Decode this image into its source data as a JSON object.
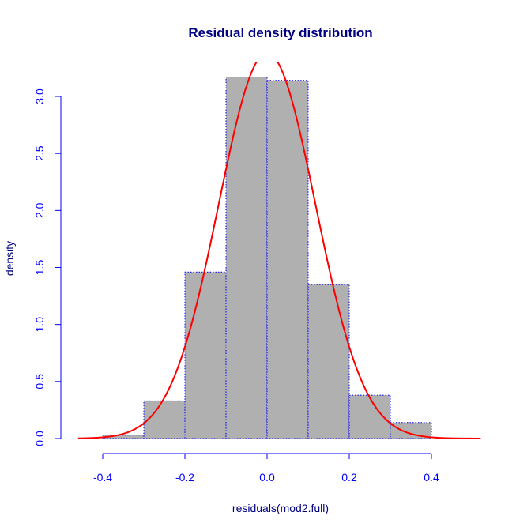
{
  "chart_data": {
    "type": "bar",
    "title": "Residual density distribution",
    "xlabel": "residuals(mod2.full)",
    "ylabel": "density",
    "xlim": [
      -0.46,
      0.52
    ],
    "ylim": [
      0,
      3.3
    ],
    "x_ticks": [
      -0.4,
      -0.2,
      0.0,
      0.2,
      0.4
    ],
    "x_tick_labels": [
      "-0.4",
      "-0.2",
      "0.0",
      "0.2",
      "0.4"
    ],
    "y_ticks": [
      0.0,
      0.5,
      1.0,
      1.5,
      2.0,
      2.5,
      3.0
    ],
    "y_tick_labels": [
      "0.0",
      "0.5",
      "1.0",
      "1.5",
      "2.0",
      "2.5",
      "3.0"
    ],
    "bins": [
      {
        "x0": -0.4,
        "x1": -0.3,
        "density": 0.03
      },
      {
        "x0": -0.3,
        "x1": -0.2,
        "density": 0.33
      },
      {
        "x0": -0.2,
        "x1": -0.1,
        "density": 1.46
      },
      {
        "x0": -0.1,
        "x1": 0.0,
        "density": 3.17
      },
      {
        "x0": 0.0,
        "x1": 0.1,
        "density": 3.14
      },
      {
        "x0": 0.1,
        "x1": 0.2,
        "density": 1.35
      },
      {
        "x0": 0.2,
        "x1": 0.3,
        "density": 0.38
      },
      {
        "x0": 0.3,
        "x1": 0.4,
        "density": 0.14
      }
    ],
    "density_curve": {
      "type": "normal",
      "mean": 0.0,
      "sd": 0.118,
      "x_range": [
        -0.46,
        0.52
      ]
    },
    "grid": false,
    "legend": "none",
    "colors": {
      "bar_fill": "#b0b0b0",
      "bar_border": "#0000ff",
      "curve": "#ff0000",
      "axis": "#0000ff",
      "title": "#000080",
      "axis_label": "#000080"
    }
  }
}
